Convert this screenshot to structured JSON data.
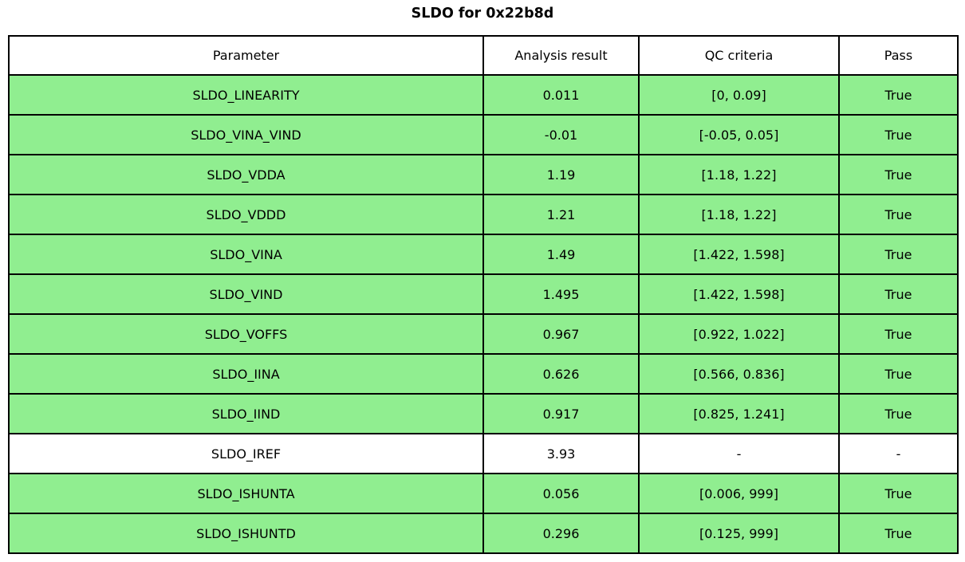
{
  "chart_data": {
    "type": "table",
    "title": "SLDO for 0x22b8d",
    "columns": [
      "Parameter",
      "Analysis result",
      "QC criteria",
      "Pass"
    ],
    "rows": [
      {
        "parameter": "SLDO_LINEARITY",
        "analysis_result": "0.011",
        "qc_criteria": "[0, 0.09]",
        "pass": "True",
        "highlighted": true
      },
      {
        "parameter": "SLDO_VINA_VIND",
        "analysis_result": "-0.01",
        "qc_criteria": "[-0.05, 0.05]",
        "pass": "True",
        "highlighted": true
      },
      {
        "parameter": "SLDO_VDDA",
        "analysis_result": "1.19",
        "qc_criteria": "[1.18, 1.22]",
        "pass": "True",
        "highlighted": true
      },
      {
        "parameter": "SLDO_VDDD",
        "analysis_result": "1.21",
        "qc_criteria": "[1.18, 1.22]",
        "pass": "True",
        "highlighted": true
      },
      {
        "parameter": "SLDO_VINA",
        "analysis_result": "1.49",
        "qc_criteria": "[1.422, 1.598]",
        "pass": "True",
        "highlighted": true
      },
      {
        "parameter": "SLDO_VIND",
        "analysis_result": "1.495",
        "qc_criteria": "[1.422, 1.598]",
        "pass": "True",
        "highlighted": true
      },
      {
        "parameter": "SLDO_VOFFS",
        "analysis_result": "0.967",
        "qc_criteria": "[0.922, 1.022]",
        "pass": "True",
        "highlighted": true
      },
      {
        "parameter": "SLDO_IINA",
        "analysis_result": "0.626",
        "qc_criteria": "[0.566, 0.836]",
        "pass": "True",
        "highlighted": true
      },
      {
        "parameter": "SLDO_IIND",
        "analysis_result": "0.917",
        "qc_criteria": "[0.825, 1.241]",
        "pass": "True",
        "highlighted": true
      },
      {
        "parameter": "SLDO_IREF",
        "analysis_result": "3.93",
        "qc_criteria": "-",
        "pass": "-",
        "highlighted": false
      },
      {
        "parameter": "SLDO_ISHUNTA",
        "analysis_result": "0.056",
        "qc_criteria": "[0.006, 999]",
        "pass": "True",
        "highlighted": true
      },
      {
        "parameter": "SLDO_ISHUNTD",
        "analysis_result": "0.296",
        "qc_criteria": "[0.125, 999]",
        "pass": "True",
        "highlighted": true
      }
    ],
    "colors": {
      "pass_row": "#90EE90",
      "neutral_row": "#ffffff",
      "header_row": "#ffffff",
      "border": "#000000",
      "text": "#000000"
    },
    "layout": {
      "grid": true,
      "legend": "none"
    }
  }
}
